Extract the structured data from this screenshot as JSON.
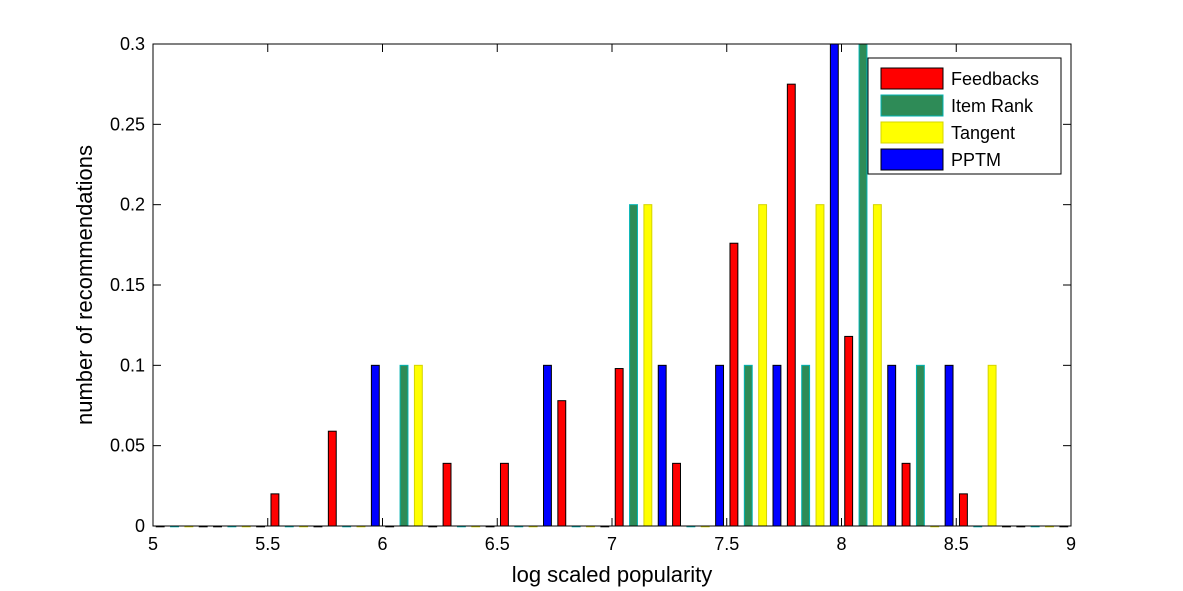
{
  "chart_data": {
    "type": "bar",
    "xlabel": "log scaled popularity",
    "ylabel": "number of recommendations",
    "xlim": [
      5,
      9
    ],
    "ylim": [
      0,
      0.3
    ],
    "xticks": [
      5,
      5.5,
      6,
      6.5,
      7,
      7.5,
      8,
      8.5,
      9
    ],
    "xtick_labels": [
      "5",
      "5.5",
      "6",
      "6.5",
      "7",
      "7.5",
      "8",
      "8.5",
      "9"
    ],
    "yticks": [
      0,
      0.05,
      0.1,
      0.15,
      0.2,
      0.25,
      0.3
    ],
    "ytick_labels": [
      "0",
      "0.05",
      "0.1",
      "0.15",
      "0.2",
      "0.25",
      "0.3"
    ],
    "legend_position": "top-right",
    "grid": false,
    "bin_centers": [
      5.125,
      5.375,
      5.625,
      5.875,
      6.125,
      6.375,
      6.625,
      6.875,
      7.125,
      7.375,
      7.625,
      7.875,
      8.125,
      8.375,
      8.625,
      8.875
    ],
    "series": [
      {
        "name": "Feedbacks",
        "color": "#ff0000",
        "edge": "#000000",
        "values": [
          0,
          0,
          0.02,
          0.059,
          0,
          0.039,
          0.039,
          0.078,
          0.098,
          0.039,
          0.176,
          0.275,
          0.118,
          0.039,
          0.02,
          0
        ]
      },
      {
        "name": "Item Rank",
        "color": "#2e8b57",
        "edge": "#00b3b3",
        "values": [
          0,
          0,
          0,
          0,
          0.1,
          0,
          0,
          0,
          0.2,
          0,
          0.1,
          0.1,
          0.3,
          0.1,
          0,
          0
        ]
      },
      {
        "name": "Tangent",
        "color": "#ffff00",
        "edge": "#d4d400",
        "values": [
          0,
          0,
          0,
          0,
          0.1,
          0,
          0,
          0,
          0.2,
          0,
          0.2,
          0.2,
          0.2,
          0,
          0.1,
          0
        ]
      },
      {
        "name": "PPTM",
        "color": "#0000ff",
        "edge": "#000000",
        "values": [
          0,
          0,
          0,
          0.1,
          0,
          0,
          0.1,
          0,
          0.1,
          0.1,
          0.1,
          0.3,
          0.1,
          0.1,
          0,
          0
        ]
      }
    ]
  }
}
